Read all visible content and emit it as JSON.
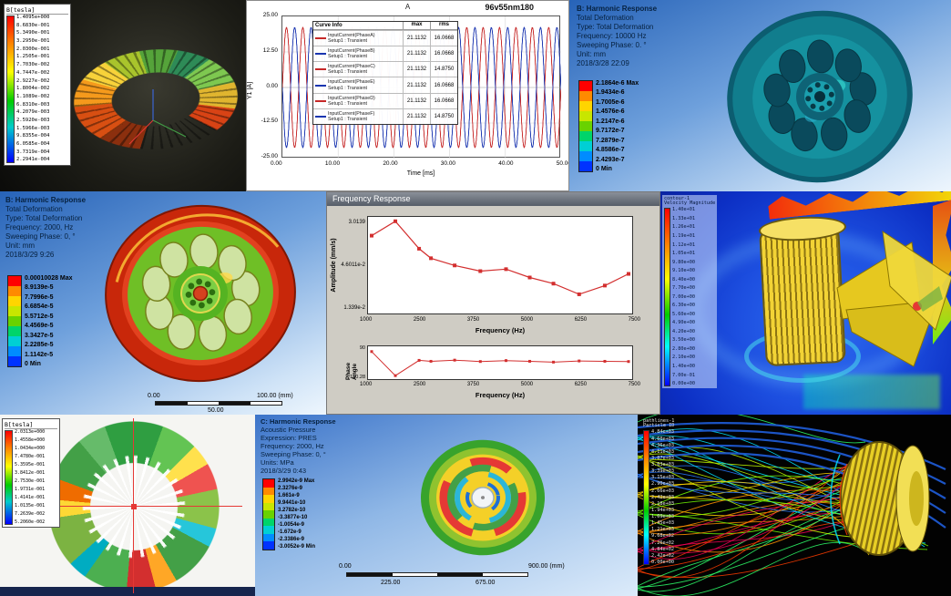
{
  "ansys_scale_colors": [
    "#ff0000",
    "#ff8a00",
    "#ffd500",
    "#c8e600",
    "#69d200",
    "#00d46a",
    "#00cfd4",
    "#008cff",
    "#0033ff"
  ],
  "p1": {
    "legend_title": "B[tesla]",
    "values": [
      "1.4095e+000",
      "8.6830e-001",
      "5.3490e-001",
      "3.2950e-001",
      "2.0300e-001",
      "1.2505e-001",
      "7.7030e-002",
      "4.7447e-002",
      "2.9227e-002",
      "1.8004e-002",
      "1.1089e-002",
      "6.8310e-003",
      "4.2079e-003",
      "2.5920e-003",
      "1.5966e-003",
      "9.8355e-004",
      "6.0585e-004",
      "3.7319e-004",
      "2.2941e-004"
    ]
  },
  "p2": {
    "title": "A",
    "corner_label": "96v55nm180",
    "ylabel": "Y1 [A]",
    "xlabel": "Time [ms]",
    "yticks": [
      "25.00",
      "12.50",
      "0.00",
      "-12.50",
      "-25.00"
    ],
    "xticks": [
      "0.00",
      "10.00",
      "20.00",
      "30.00",
      "40.00",
      "50.00"
    ],
    "legend_header": {
      "info": "Curve Info",
      "max": "max",
      "rms": "rms"
    }
  },
  "p3": {
    "header_lines": [
      "B: Harmonic Response",
      "Total Deformation",
      "Type: Total Deformation",
      "Frequency: 10000 Hz",
      "Sweeping Phase: 0. °",
      "Unit: mm",
      "2018/3/28 22:09"
    ],
    "scale_values": [
      "2.1864e-6 Max",
      "1.9434e-6",
      "1.7005e-6",
      "1.4576e-6",
      "1.2147e-6",
      "9.7172e-7",
      "7.2879e-7",
      "4.8586e-7",
      "2.4293e-7",
      "0 Min"
    ]
  },
  "p4": {
    "header_lines": [
      "B: Harmonic Response",
      "Total Deformation",
      "Type: Total Deformation",
      "Frequency: 2000, Hz",
      "Sweeping Phase: 0, °",
      "Unit: mm",
      "2018/3/29 9:26"
    ],
    "scale_values": [
      "0.00010028 Max",
      "8.9139e-5",
      "7.7996e-5",
      "6.6854e-5",
      "5.5712e-5",
      "4.4569e-5",
      "3.3427e-5",
      "2.2285e-5",
      "1.1142e-5",
      "0 Min"
    ],
    "ruler": {
      "start": "0.00",
      "mid": "50.00",
      "end": "100.00 (mm)"
    }
  },
  "p5": {
    "window_title": "Frequency Response",
    "amp": {
      "ylabel": "Amplitude (mm/s)",
      "yticks": [
        "3.0139",
        "4.6011e-2",
        "1.339e-2"
      ],
      "xticks": [
        "1000",
        "2500",
        "3750",
        "5000",
        "6250",
        "7500"
      ],
      "xlabel": "Frequency (Hz)"
    },
    "phase": {
      "ylabel": "Phase Angle",
      "yticks": [
        "90",
        "-150.28"
      ],
      "xticks": [
        "1000",
        "2500",
        "3750",
        "5000",
        "6250",
        "7500"
      ],
      "xlabel": "Frequency (Hz)"
    }
  },
  "p6": {
    "legend_title_lines": [
      "contour-1",
      "Velocity Magnitude"
    ],
    "ticks": [
      "1.40e+01",
      "1.33e+01",
      "1.26e+01",
      "1.19e+01",
      "1.12e+01",
      "1.05e+01",
      "9.80e+00",
      "9.10e+00",
      "8.40e+00",
      "7.70e+00",
      "7.00e+00",
      "6.30e+00",
      "5.60e+00",
      "4.90e+00",
      "4.20e+00",
      "3.50e+00",
      "2.80e+00",
      "2.10e+00",
      "1.40e+00",
      "7.00e-01",
      "0.00e+00"
    ]
  },
  "p7": {
    "legend_title": "B[tesla]",
    "values": [
      "2.0313e+000",
      "1.4558e+000",
      "1.0434e+000",
      "7.4780e-001",
      "5.3595e-001",
      "3.8412e-001",
      "2.7530e-001",
      "1.9731e-001",
      "1.4141e-001",
      "1.0135e-001",
      "7.2639e-002",
      "5.2060e-002"
    ]
  },
  "p8": {
    "header_lines": [
      "C: Harmonic Response",
      "Acoustic Pressure",
      "Expression: PRES",
      "Frequency: 2000, Hz",
      "Sweeping Phase: 0, °",
      "Units: MPa",
      "2018/3/29 0:43"
    ],
    "scale_values": [
      "2.9942e-9 Max",
      "2.3276e-9",
      "1.661e-9",
      "9.9441e-10",
      "3.2782e-10",
      "-3.3877e-10",
      "-1.0054e-9",
      "-1.672e-9",
      "-2.3386e-9",
      "-3.0052e-9 Min"
    ],
    "ruler": {
      "start": "0.00",
      "q1": "225.00",
      "q3": "675.00",
      "end": "900.00 (mm)"
    }
  },
  "p9": {
    "legend_title_lines": [
      "pathlines-1",
      "Particle ID"
    ],
    "ticks": [
      "4.84e+03",
      "4.60e+03",
      "4.36e+03",
      "4.11e+03",
      "3.87e+03",
      "3.63e+03",
      "3.39e+03",
      "3.15e+03",
      "2.90e+03",
      "2.66e+03",
      "2.42e+03",
      "2.18e+03",
      "1.94e+03",
      "1.69e+03",
      "1.45e+03",
      "1.21e+03",
      "9.68e+02",
      "7.26e+02",
      "4.84e+02",
      "2.42e+02",
      "0.00e+00"
    ],
    "palette": [
      "#2eff6a",
      "#c6ff00",
      "#ffd600",
      "#ff9100",
      "#ff3d00",
      "#00e5ff",
      "#2979ff",
      "#76ff03",
      "#f50057"
    ]
  },
  "chart_data": [
    {
      "type": "line",
      "title": "A",
      "subtitle": "96v55nm180",
      "xlabel": "Time [ms]",
      "ylabel": "Y1 [A]",
      "xlim": [
        0,
        50
      ],
      "ylim": [
        -25,
        25
      ],
      "grid": true,
      "legend_position": "left-inside",
      "series": [
        {
          "name": "InputCurrent(PhaseA)",
          "setup": "Setup1 : Transient",
          "max": 21.1132,
          "rms": 16.0668,
          "color": "#c62828",
          "amplitude": 21.1132,
          "period_ms": 2.94,
          "phase_deg": 0
        },
        {
          "name": "InputCurrent(PhaseB)",
          "setup": "Setup1 : Transient",
          "max": 21.1132,
          "rms": 16.0668,
          "color": "#1a35b0",
          "amplitude": 21.1132,
          "period_ms": 2.94,
          "phase_deg": 180
        },
        {
          "name": "InputCurrent(PhaseC)",
          "setup": "Setup1 : Transient",
          "max": 21.1132,
          "rms": 14.875,
          "color": "#c62828",
          "amplitude": 21.1132,
          "period_ms": 2.94,
          "phase_deg": 0
        },
        {
          "name": "InputCurrent(PhaseE)",
          "setup": "Setup1 : Transient",
          "max": 21.1132,
          "rms": 16.0668,
          "color": "#1a35b0",
          "amplitude": 21.1132,
          "period_ms": 2.94,
          "phase_deg": 180
        },
        {
          "name": "InputCurrent(PhaseD)",
          "setup": "Setup1 : Transient",
          "max": 21.1132,
          "rms": 16.0668,
          "color": "#c62828",
          "amplitude": 21.1132,
          "period_ms": 2.94,
          "phase_deg": 0
        },
        {
          "name": "InputCurrent(PhaseF)",
          "setup": "Setup1 : Transient",
          "max": 21.1132,
          "rms": 14.875,
          "color": "#1a35b0",
          "amplitude": 21.1132,
          "period_ms": 2.94,
          "phase_deg": 180
        }
      ]
    },
    {
      "type": "line",
      "title": "Frequency Response - Amplitude",
      "xlabel": "Frequency (Hz)",
      "ylabel": "Amplitude (mm/s)",
      "log_y": true,
      "xlim": [
        1000,
        7500
      ],
      "ylim": [
        0.01,
        40
      ],
      "color": "#d32f2f",
      "x": [
        1000,
        1600,
        2200,
        2500,
        3100,
        3750,
        4400,
        5000,
        5600,
        6250,
        6900,
        7500
      ],
      "values": [
        8.0,
        27.5,
        2.6,
        1.15,
        0.62,
        0.38,
        0.45,
        0.22,
        0.13,
        0.052,
        0.11,
        0.3
      ]
    },
    {
      "type": "line",
      "title": "Frequency Response - Phase Angle",
      "xlabel": "Frequency (Hz)",
      "ylabel": "Phase Angle",
      "xlim": [
        1000,
        7500
      ],
      "ylim": [
        -180,
        100
      ],
      "color": "#d32f2f",
      "x": [
        1000,
        1600,
        2200,
        2500,
        3100,
        3750,
        4400,
        5000,
        5600,
        6250,
        6900,
        7500
      ],
      "values": [
        55,
        -150.28,
        -20,
        -28,
        -18,
        -30,
        -22,
        -28,
        -35,
        -25,
        -28,
        -30
      ]
    }
  ]
}
